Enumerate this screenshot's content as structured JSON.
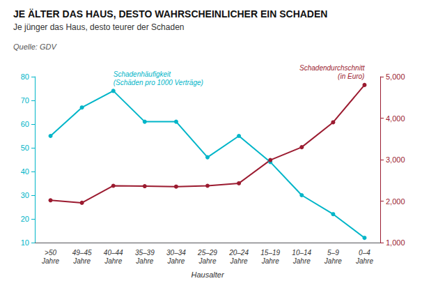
{
  "chart_data": {
    "type": "line",
    "title": "JE ÄLTER DAS HAUS, DESTO WAHRSCHEINLICHER EIN SCHADEN",
    "subtitle": "Je jünger das Haus, desto teurer der Schaden",
    "source": "Quelle: GDV",
    "xlabel": "Hausalter",
    "categories": [
      ">50\nJahre",
      "49–45\nJahre",
      "40–44\nJahre",
      "35–39\nJahre",
      "30–34\nJahre",
      "25–29\nJahre",
      "20–24\nJahre",
      "15–19\nJahre",
      "10–14\nJahre",
      "5–9\nJahre",
      "0–4\nJahre"
    ],
    "series": [
      {
        "color": "#00B5C8",
        "values": [
          55,
          67,
          74,
          61,
          61,
          46,
          55,
          44,
          30,
          22,
          12
        ],
        "annotation": "Schadenhäufigkeit\n(Schäden pro 1000 Verträge)"
      },
      {
        "color": "#9B1B30",
        "axis": "y2",
        "values": [
          2020,
          1960,
          2370,
          2360,
          2350,
          2370,
          2430,
          2990,
          3300,
          3900,
          4800
        ],
        "annotation": "Schadendurchschnitt\n(in Euro)"
      }
    ],
    "ylim": [
      10,
      80
    ],
    "yticks": [
      10,
      20,
      30,
      40,
      50,
      60,
      70,
      80
    ],
    "y2lim": [
      1000,
      5000
    ],
    "y2ticks": [
      1000,
      2000,
      3000,
      4000,
      5000
    ],
    "grid": false,
    "marker": "circle"
  }
}
